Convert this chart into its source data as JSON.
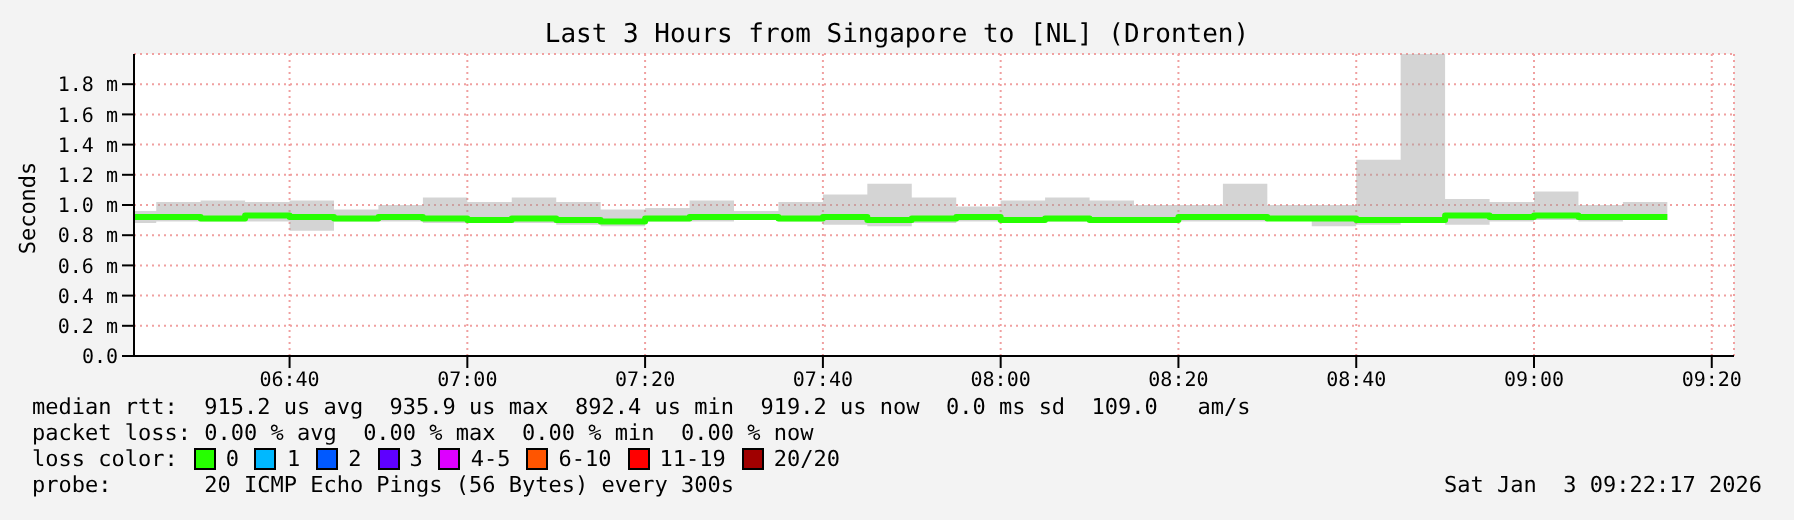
{
  "chart_data": {
    "type": "step",
    "title": "Last 3 Hours from Singapore to [NL] (Dronten)",
    "ylabel": "Seconds",
    "x": [
      6.375,
      6.4167,
      6.5,
      6.5833,
      6.6667,
      6.75,
      6.8333,
      6.9167,
      7.0,
      7.0833,
      7.1667,
      7.25,
      7.3333,
      7.4167,
      7.5,
      7.5833,
      7.6667,
      7.75,
      7.8333,
      7.9167,
      8.0,
      8.0833,
      8.1667,
      8.25,
      8.3333,
      8.4167,
      8.5,
      8.5833,
      8.6667,
      8.75,
      8.8333,
      8.9167,
      9.0,
      9.0833,
      9.1667,
      9.25
    ],
    "series": [
      {
        "name": "0",
        "color": "#26ff00",
        "values": [
          0.92,
          0.92,
          0.91,
          0.93,
          0.92,
          0.91,
          0.92,
          0.91,
          0.9,
          0.91,
          0.9,
          0.89,
          0.91,
          0.92,
          0.92,
          0.91,
          0.92,
          0.9,
          0.91,
          0.92,
          0.9,
          0.91,
          0.9,
          0.9,
          0.92,
          0.92,
          0.91,
          0.91,
          0.9,
          0.9,
          0.93,
          0.92,
          0.93,
          0.92,
          0.92,
          0.92
        ],
        "lower": [
          0.88,
          0.89,
          0.89,
          0.89,
          0.83,
          0.89,
          0.89,
          0.88,
          0.88,
          0.88,
          0.87,
          0.86,
          0.89,
          0.89,
          0.9,
          0.89,
          0.87,
          0.86,
          0.88,
          0.89,
          0.88,
          0.89,
          0.88,
          0.88,
          0.89,
          0.89,
          0.9,
          0.86,
          0.87,
          0.88,
          0.87,
          0.89,
          0.9,
          0.89,
          0.9,
          0.9
        ],
        "upper": [
          0.96,
          1.02,
          1.03,
          1.02,
          1.03,
          0.97,
          1.0,
          1.05,
          1.02,
          1.05,
          1.02,
          0.97,
          0.98,
          1.03,
          0.96,
          1.02,
          1.07,
          1.14,
          1.05,
          0.99,
          1.03,
          1.05,
          1.03,
          1.0,
          1.0,
          1.14,
          1.0,
          1.0,
          1.3,
          2.0,
          1.04,
          1.02,
          1.09,
          1.0,
          1.02,
          1.02
        ]
      },
      {
        "name": "1",
        "color": "#00b8ff",
        "values": [
          null,
          null,
          null,
          null,
          null,
          null,
          null,
          null,
          null,
          null,
          null,
          null,
          null,
          null,
          null,
          null,
          null,
          null,
          null,
          null,
          null,
          null,
          null,
          null,
          null,
          null,
          null,
          null,
          null,
          null,
          null,
          null,
          null,
          null,
          null,
          null
        ]
      },
      {
        "name": "2",
        "color": "#0059ff",
        "values": [
          null,
          null,
          null,
          null,
          null,
          null,
          null,
          null,
          null,
          null,
          null,
          null,
          null,
          null,
          null,
          null,
          null,
          null,
          null,
          null,
          null,
          null,
          null,
          null,
          null,
          null,
          null,
          null,
          null,
          null,
          null,
          null,
          null,
          null,
          null,
          null
        ]
      },
      {
        "name": "3",
        "color": "#5e00ff",
        "values": [
          null,
          null,
          null,
          null,
          null,
          null,
          null,
          null,
          null,
          null,
          null,
          null,
          null,
          null,
          null,
          null,
          null,
          null,
          null,
          null,
          null,
          null,
          null,
          null,
          null,
          null,
          null,
          null,
          null,
          null,
          null,
          null,
          null,
          null,
          null,
          null
        ]
      },
      {
        "name": "4-5",
        "color": "#dd00ff",
        "values": [
          null,
          null,
          null,
          null,
          null,
          null,
          null,
          null,
          null,
          null,
          null,
          null,
          null,
          null,
          null,
          null,
          null,
          null,
          null,
          null,
          null,
          null,
          null,
          null,
          null,
          null,
          null,
          null,
          null,
          null,
          null,
          null,
          null,
          null,
          null,
          null
        ]
      },
      {
        "name": "6-10",
        "color": "#ff5500",
        "values": [
          null,
          null,
          null,
          null,
          null,
          null,
          null,
          null,
          null,
          null,
          null,
          null,
          null,
          null,
          null,
          null,
          null,
          null,
          null,
          null,
          null,
          null,
          null,
          null,
          null,
          null,
          null,
          null,
          null,
          null,
          null,
          null,
          null,
          null,
          null,
          null
        ]
      },
      {
        "name": "11-19",
        "color": "#ff0000",
        "values": [
          null,
          null,
          null,
          null,
          null,
          null,
          null,
          null,
          null,
          null,
          null,
          null,
          null,
          null,
          null,
          null,
          null,
          null,
          null,
          null,
          null,
          null,
          null,
          null,
          null,
          null,
          null,
          null,
          null,
          null,
          null,
          null,
          null,
          null,
          null,
          null
        ]
      },
      {
        "name": "20/20",
        "color": "#a00000",
        "values": [
          null,
          null,
          null,
          null,
          null,
          null,
          null,
          null,
          null,
          null,
          null,
          null,
          null,
          null,
          null,
          null,
          null,
          null,
          null,
          null,
          null,
          null,
          null,
          null,
          null,
          null,
          null,
          null,
          null,
          null,
          null,
          null,
          null,
          null,
          null,
          null
        ]
      }
    ],
    "xlim": [
      6.375,
      9.375
    ],
    "xticks": [
      {
        "value": 6.6667,
        "label": "06:40"
      },
      {
        "value": 7.0,
        "label": "07:00"
      },
      {
        "value": 7.3333,
        "label": "07:20"
      },
      {
        "value": 7.6667,
        "label": "07:40"
      },
      {
        "value": 8.0,
        "label": "08:00"
      },
      {
        "value": 8.3333,
        "label": "08:20"
      },
      {
        "value": 8.6667,
        "label": "08:40"
      },
      {
        "value": 9.0,
        "label": "09:00"
      },
      {
        "value": 9.3333,
        "label": "09:20"
      }
    ],
    "ylim": [
      0,
      2.0
    ],
    "yticks": [
      {
        "value": 0,
        "label": "0.0"
      },
      {
        "value": 0.2,
        "label": "0.2 m"
      },
      {
        "value": 0.4,
        "label": "0.4 m"
      },
      {
        "value": 0.6,
        "label": "0.6 m"
      },
      {
        "value": 0.8,
        "label": "0.8 m"
      },
      {
        "value": 1.0,
        "label": "1.0 m"
      },
      {
        "value": 1.2,
        "label": "1.2 m"
      },
      {
        "value": 1.4,
        "label": "1.4 m"
      },
      {
        "value": 1.6,
        "label": "1.6 m"
      },
      {
        "value": 1.8,
        "label": "1.8 m"
      }
    ],
    "grid": true,
    "legend": "bottom",
    "annotations": [
      "median rtt:  915.2 us avg  935.9 us max  892.4 us min  919.2 us now  0.0 ms sd  109.0   am/s",
      "packet loss: 0.00 % avg  0.00 % max  0.00 % min  0.00 % now",
      "loss color:",
      "probe:       20 ICMP Echo Pings (56 Bytes) every 300s",
      "Sat Jan  3 09:22:17 2026"
    ]
  }
}
